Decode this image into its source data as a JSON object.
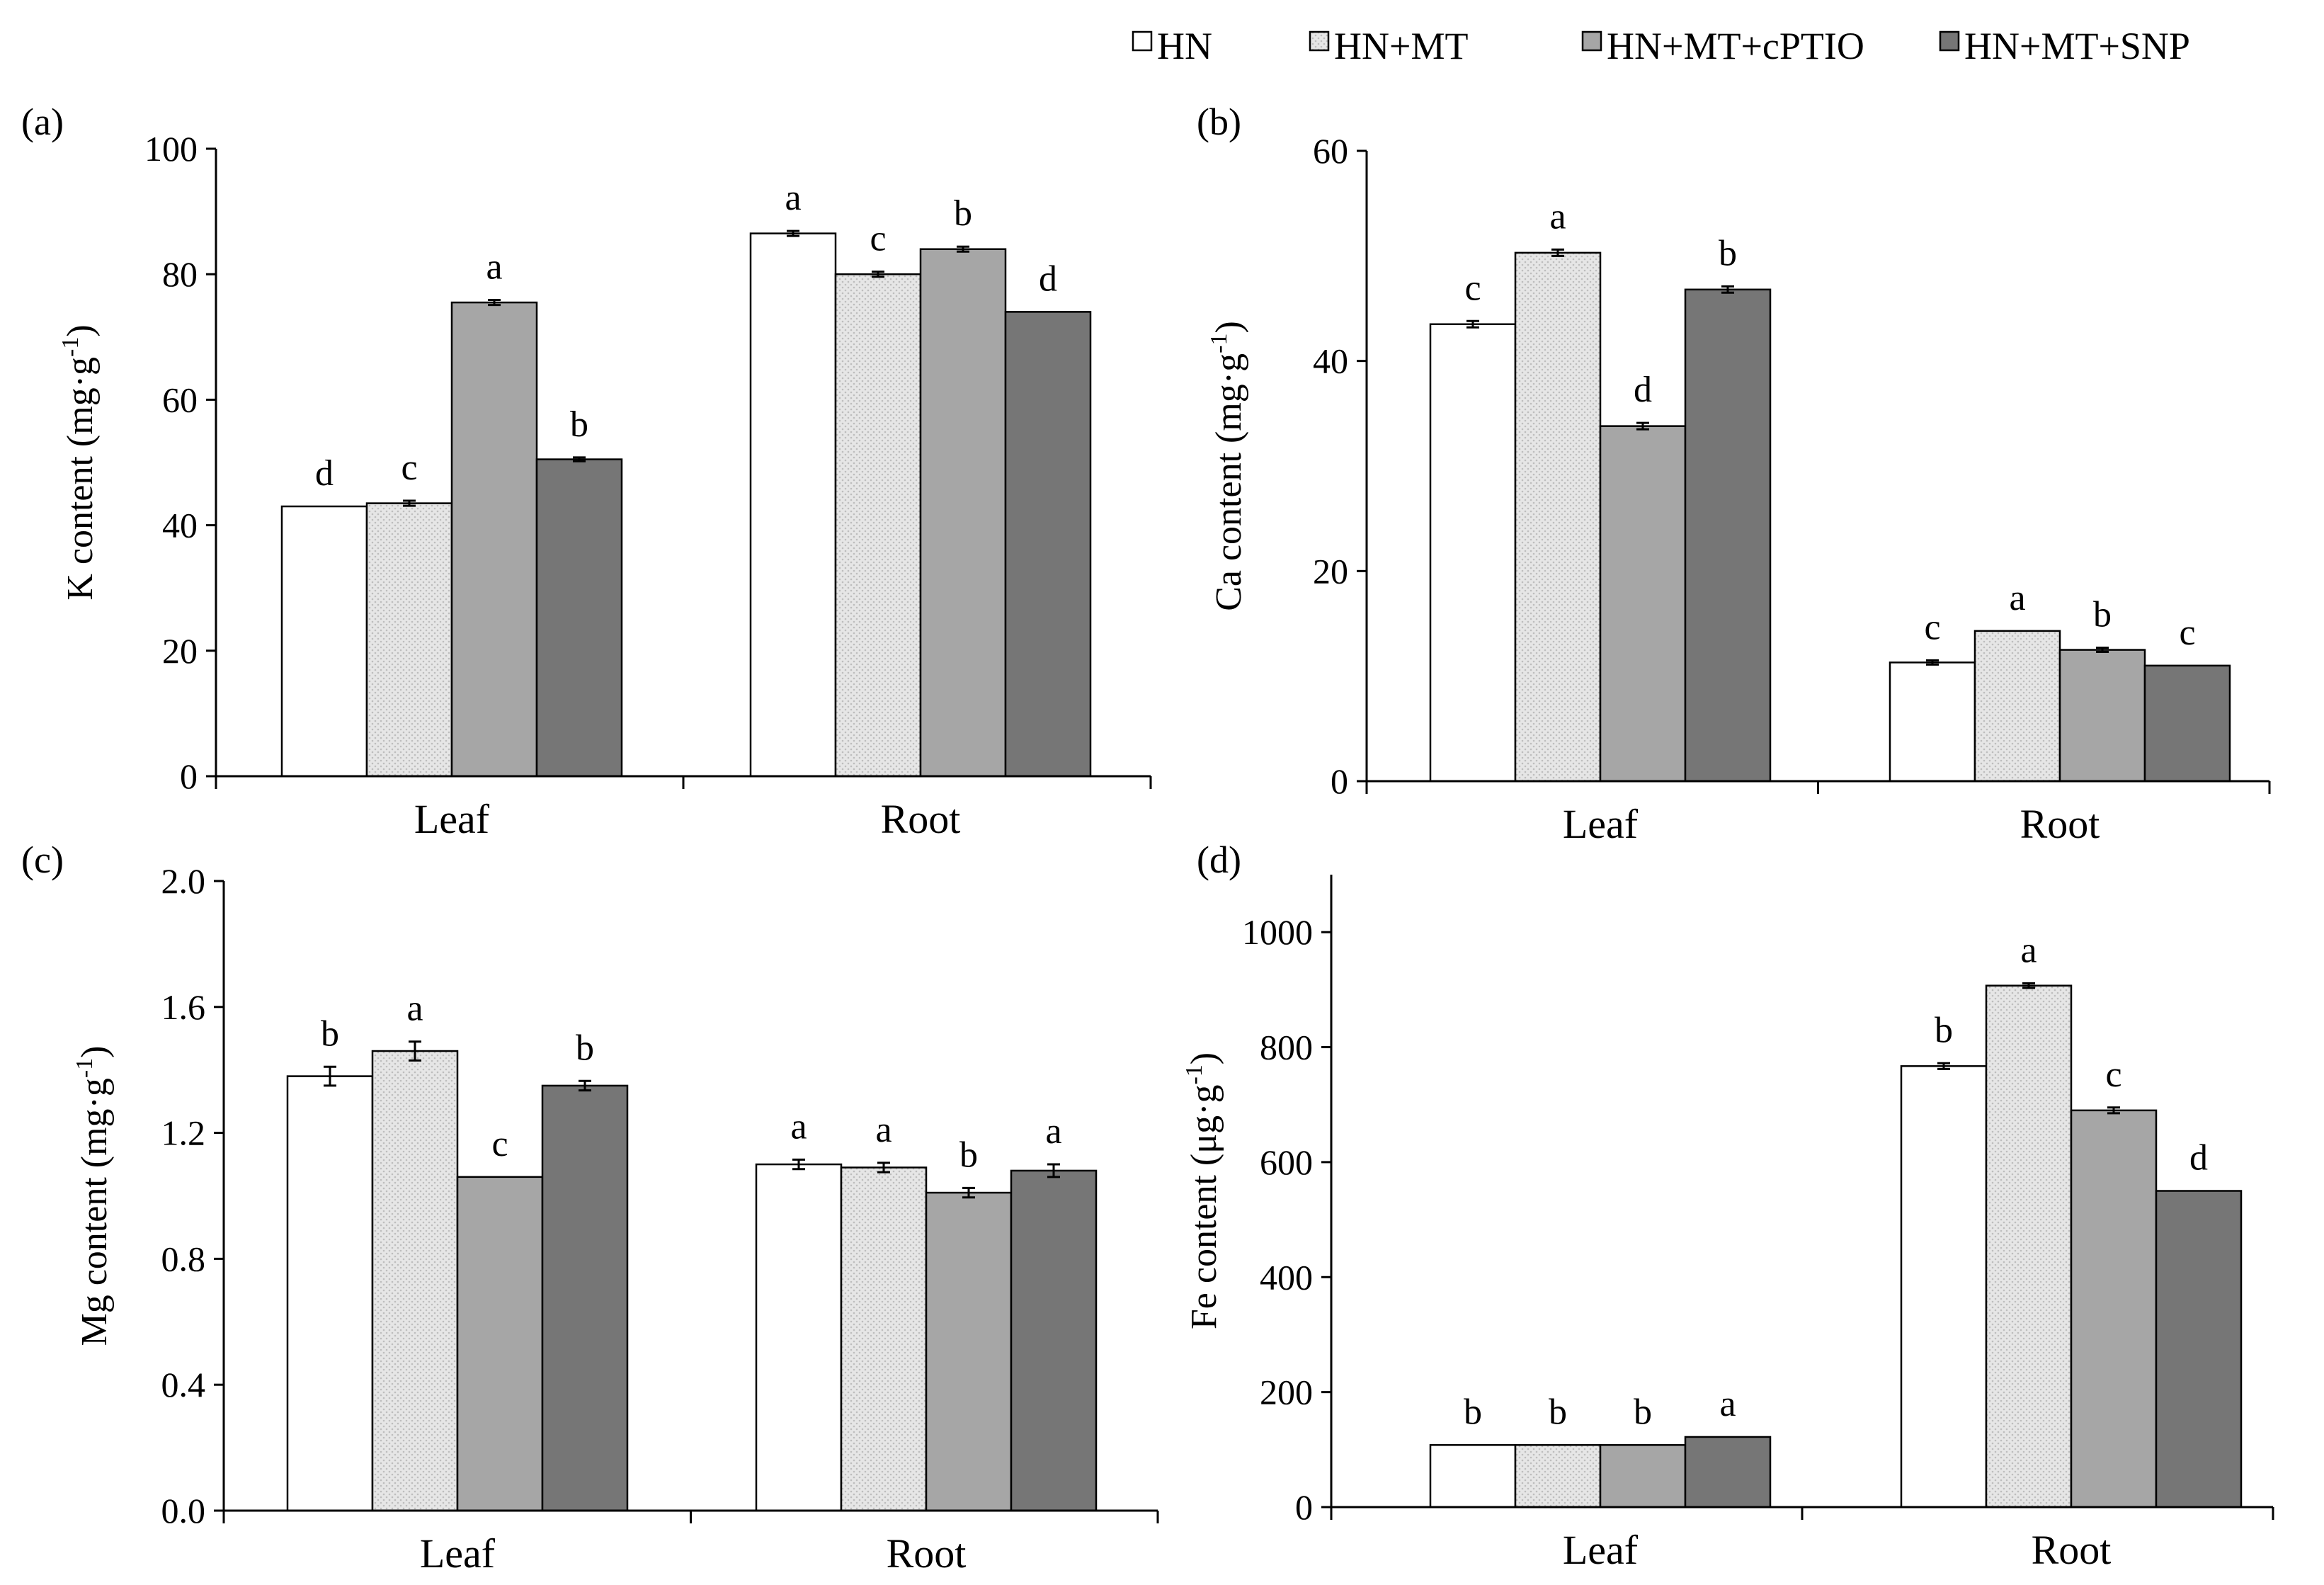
{
  "legend": [
    {
      "label": "HN",
      "color": "#ffffff",
      "pattern": "solid"
    },
    {
      "label": "HN+MT",
      "color": "#e2e2e2",
      "pattern": "dotted"
    },
    {
      "label": "HN+MT+cPTIO",
      "color": "#a6a6a6",
      "pattern": "solid"
    },
    {
      "label": "HN+MT+SNP",
      "color": "#767676",
      "pattern": "solid"
    }
  ],
  "chart_data": [
    {
      "type": "bar",
      "panel_label": "(a)",
      "ylabel": "K content (mg·g-1)",
      "ylabel_main": "K content (mg·g",
      "ylabel_sup": "-1",
      "ylabel_tail": ")",
      "ylim": [
        0,
        100
      ],
      "yticks": [
        0,
        20,
        40,
        60,
        80,
        100
      ],
      "ytick_labels": [
        "0",
        "20",
        "40",
        "60",
        "80",
        "100"
      ],
      "categories": [
        "Leaf",
        "Root"
      ],
      "series": [
        {
          "name": "HN",
          "values": [
            43,
            86.5
          ],
          "errors": [
            0,
            0.4
          ],
          "letters": [
            "d",
            "a"
          ]
        },
        {
          "name": "HN+MT",
          "values": [
            43.5,
            80
          ],
          "errors": [
            0.4,
            0.4
          ],
          "letters": [
            "c",
            "c"
          ]
        },
        {
          "name": "HN+MT+cPTIO",
          "values": [
            75.5,
            84
          ],
          "errors": [
            0.4,
            0.4
          ],
          "letters": [
            "a",
            "b"
          ]
        },
        {
          "name": "HN+MT+SNP",
          "values": [
            50.5,
            74
          ],
          "errors": [
            0.3,
            0
          ],
          "letters": [
            "b",
            "d"
          ]
        }
      ]
    },
    {
      "type": "bar",
      "panel_label": "(b)",
      "ylabel": "Ca content (mg·g-1)",
      "ylabel_main": "Ca content (mg·g",
      "ylabel_sup": "-1",
      "ylabel_tail": ")",
      "ylim": [
        0,
        60
      ],
      "yticks": [
        0,
        20,
        40,
        60
      ],
      "ytick_labels": [
        "0",
        "20",
        "40",
        "60"
      ],
      "categories": [
        "Leaf",
        "Root"
      ],
      "series": [
        {
          "name": "HN",
          "values": [
            43.5,
            11.3
          ],
          "errors": [
            0.3,
            0.2
          ],
          "letters": [
            "c",
            "c"
          ]
        },
        {
          "name": "HN+MT",
          "values": [
            50.3,
            14.3
          ],
          "errors": [
            0.3,
            0
          ],
          "letters": [
            "a",
            "a"
          ]
        },
        {
          "name": "HN+MT+cPTIO",
          "values": [
            33.8,
            12.5
          ],
          "errors": [
            0.3,
            0.2
          ],
          "letters": [
            "d",
            "b"
          ]
        },
        {
          "name": "HN+MT+SNP",
          "values": [
            46.8,
            11
          ],
          "errors": [
            0.3,
            0
          ],
          "letters": [
            "b",
            "c"
          ]
        }
      ]
    },
    {
      "type": "bar",
      "panel_label": "(c)",
      "ylabel": "Mg content (mg·g-1)",
      "ylabel_main": "Mg content (mg·g",
      "ylabel_sup": "-1",
      "ylabel_tail": ")",
      "ylim": [
        0,
        2.0
      ],
      "yticks": [
        0,
        0.4,
        0.8,
        1.2,
        1.6,
        2.0
      ],
      "ytick_labels": [
        "0.0",
        "0.4",
        "0.8",
        "1.2",
        "1.6",
        "2.0"
      ],
      "categories": [
        "Leaf",
        "Root"
      ],
      "series": [
        {
          "name": "HN",
          "values": [
            1.38,
            1.1
          ],
          "errors": [
            0.03,
            0.015
          ],
          "letters": [
            "b",
            "a"
          ]
        },
        {
          "name": "HN+MT",
          "values": [
            1.46,
            1.09
          ],
          "errors": [
            0.03,
            0.015
          ],
          "letters": [
            "a",
            "a"
          ]
        },
        {
          "name": "HN+MT+cPTIO",
          "values": [
            1.06,
            1.01
          ],
          "errors": [
            0,
            0.015
          ],
          "letters": [
            "c",
            "b"
          ]
        },
        {
          "name": "HN+MT+SNP",
          "values": [
            1.35,
            1.08
          ],
          "errors": [
            0.015,
            0.02
          ],
          "letters": [
            "b",
            "a"
          ]
        }
      ]
    },
    {
      "type": "bar",
      "panel_label": "(d)",
      "ylabel": "Fe content (μg·g-1)",
      "ylabel_main": "Fe content  (μg·g",
      "ylabel_sup": "-1",
      "ylabel_tail": ")",
      "ylim": [
        0,
        1100
      ],
      "yticks": [
        0,
        200,
        400,
        600,
        800,
        1000
      ],
      "ytick_labels": [
        "0",
        "200",
        "400",
        "600",
        "800",
        "1000"
      ],
      "categories": [
        "Leaf",
        "Root"
      ],
      "series": [
        {
          "name": "HN",
          "values": [
            108,
            767
          ],
          "errors": [
            0,
            5
          ],
          "letters": [
            "b",
            "b"
          ]
        },
        {
          "name": "HN+MT",
          "values": [
            108,
            907
          ],
          "errors": [
            0,
            4
          ],
          "letters": [
            "b",
            "a"
          ]
        },
        {
          "name": "HN+MT+cPTIO",
          "values": [
            108,
            690
          ],
          "errors": [
            0,
            5
          ],
          "letters": [
            "b",
            "c"
          ]
        },
        {
          "name": "HN+MT+SNP",
          "values": [
            122,
            550
          ],
          "errors": [
            0,
            0
          ],
          "letters": [
            "a",
            "d"
          ]
        }
      ]
    }
  ]
}
